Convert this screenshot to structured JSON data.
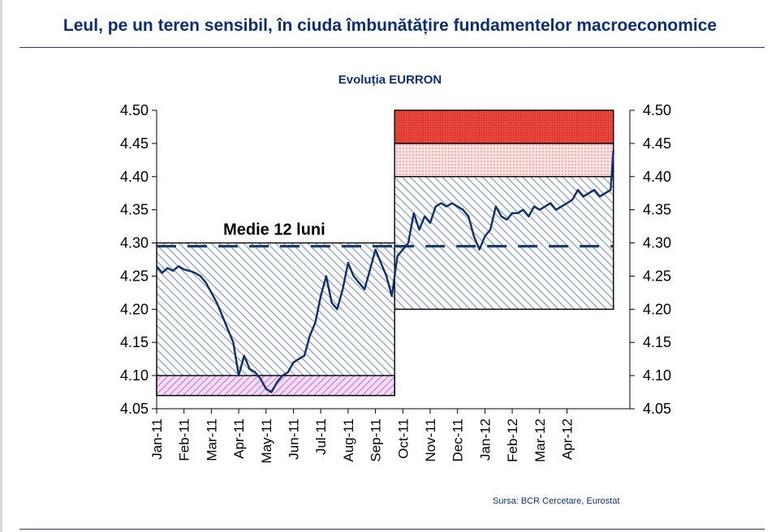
{
  "header": {
    "title": "Leul, pe un teren sensibil, în ciuda îmbunătățire fundamentelor macroeconomice"
  },
  "footer": {
    "source": "Sursa: BCR Cercetare, Eurostat"
  },
  "colors": {
    "title": "#0b2e7a",
    "line": "#0d2e6e",
    "hatch": "#9aabc2",
    "red_zone": "#e0352b",
    "pink_zone": "#f3c3c3",
    "purple_zone": "#c070d0"
  },
  "chart_data": {
    "type": "line",
    "title": "Evoluția EURRON",
    "xlabel": "",
    "ylabel": "",
    "ylim": [
      4.05,
      4.5
    ],
    "y_ticks": [
      "4.05",
      "4.10",
      "4.15",
      "4.20",
      "4.25",
      "4.30",
      "4.35",
      "4.40",
      "4.45",
      "4.50"
    ],
    "categories": [
      "Jan-11",
      "Feb-11",
      "Mar-11",
      "Apr-11",
      "May-11",
      "Jun-11",
      "Jul-11",
      "Aug-11",
      "Sep-11",
      "Oct-11",
      "Nov-11",
      "Dec-11",
      "Jan-12",
      "Feb-12",
      "Mar-12",
      "Apr-12"
    ],
    "x_range": [
      0,
      17.3
    ],
    "annotations": [
      {
        "text": "Medie 12 luni",
        "x": 4.3,
        "y": 4.31
      }
    ],
    "averages": [
      {
        "name": "Medie 12 luni",
        "x_from": 0,
        "x_to": 8.7,
        "value": 4.295
      },
      {
        "name": "Medie 12 luni",
        "x_from": 8.7,
        "x_to": 16.7,
        "value": 4.295
      }
    ],
    "bands": [
      {
        "name": "range-2011",
        "x_from": 0,
        "x_to": 8.7,
        "y_from": 4.07,
        "y_to": 4.3,
        "fill": "hatch"
      },
      {
        "name": "low-2011",
        "x_from": 0,
        "x_to": 8.7,
        "y_from": 4.07,
        "y_to": 4.1,
        "fill": "purple"
      },
      {
        "name": "range-2012",
        "x_from": 8.7,
        "x_to": 16.7,
        "y_from": 4.2,
        "y_to": 4.4,
        "fill": "hatch"
      },
      {
        "name": "pink-2012",
        "x_from": 8.7,
        "x_to": 16.7,
        "y_from": 4.4,
        "y_to": 4.45,
        "fill": "pink"
      },
      {
        "name": "red-2012",
        "x_from": 8.7,
        "x_to": 16.7,
        "y_from": 4.45,
        "y_to": 4.5,
        "fill": "red"
      }
    ],
    "series": [
      {
        "name": "EURRON",
        "x": [
          0.0,
          0.2,
          0.4,
          0.6,
          0.8,
          1.0,
          1.2,
          1.4,
          1.6,
          1.8,
          2.0,
          2.2,
          2.4,
          2.6,
          2.8,
          3.0,
          3.2,
          3.4,
          3.6,
          3.8,
          4.0,
          4.2,
          4.4,
          4.6,
          4.8,
          5.0,
          5.2,
          5.4,
          5.6,
          5.8,
          6.0,
          6.2,
          6.4,
          6.6,
          6.8,
          7.0,
          7.2,
          7.4,
          7.6,
          7.8,
          8.0,
          8.2,
          8.4,
          8.6,
          8.8,
          9.0,
          9.2,
          9.4,
          9.6,
          9.8,
          10.0,
          10.2,
          10.4,
          10.6,
          10.8,
          11.0,
          11.2,
          11.4,
          11.6,
          11.8,
          12.0,
          12.2,
          12.4,
          12.6,
          12.8,
          13.0,
          13.2,
          13.4,
          13.6,
          13.8,
          14.0,
          14.2,
          14.4,
          14.6,
          14.8,
          15.0,
          15.2,
          15.4,
          15.6,
          15.8,
          16.0,
          16.2,
          16.4,
          16.6,
          16.7
        ],
        "values": [
          4.265,
          4.255,
          4.262,
          4.258,
          4.265,
          4.26,
          4.258,
          4.255,
          4.25,
          4.24,
          4.225,
          4.21,
          4.19,
          4.17,
          4.15,
          4.1,
          4.13,
          4.11,
          4.105,
          4.095,
          4.08,
          4.075,
          4.09,
          4.1,
          4.105,
          4.12,
          4.125,
          4.13,
          4.16,
          4.18,
          4.22,
          4.25,
          4.21,
          4.2,
          4.23,
          4.27,
          4.25,
          4.24,
          4.23,
          4.26,
          4.29,
          4.27,
          4.25,
          4.22,
          4.28,
          4.29,
          4.3,
          4.345,
          4.32,
          4.34,
          4.33,
          4.355,
          4.36,
          4.355,
          4.36,
          4.355,
          4.35,
          4.34,
          4.31,
          4.29,
          4.31,
          4.32,
          4.355,
          4.34,
          4.335,
          4.345,
          4.345,
          4.35,
          4.34,
          4.355,
          4.35,
          4.355,
          4.36,
          4.35,
          4.355,
          4.36,
          4.365,
          4.38,
          4.37,
          4.375,
          4.38,
          4.37,
          4.375,
          4.38,
          4.44
        ]
      }
    ]
  }
}
